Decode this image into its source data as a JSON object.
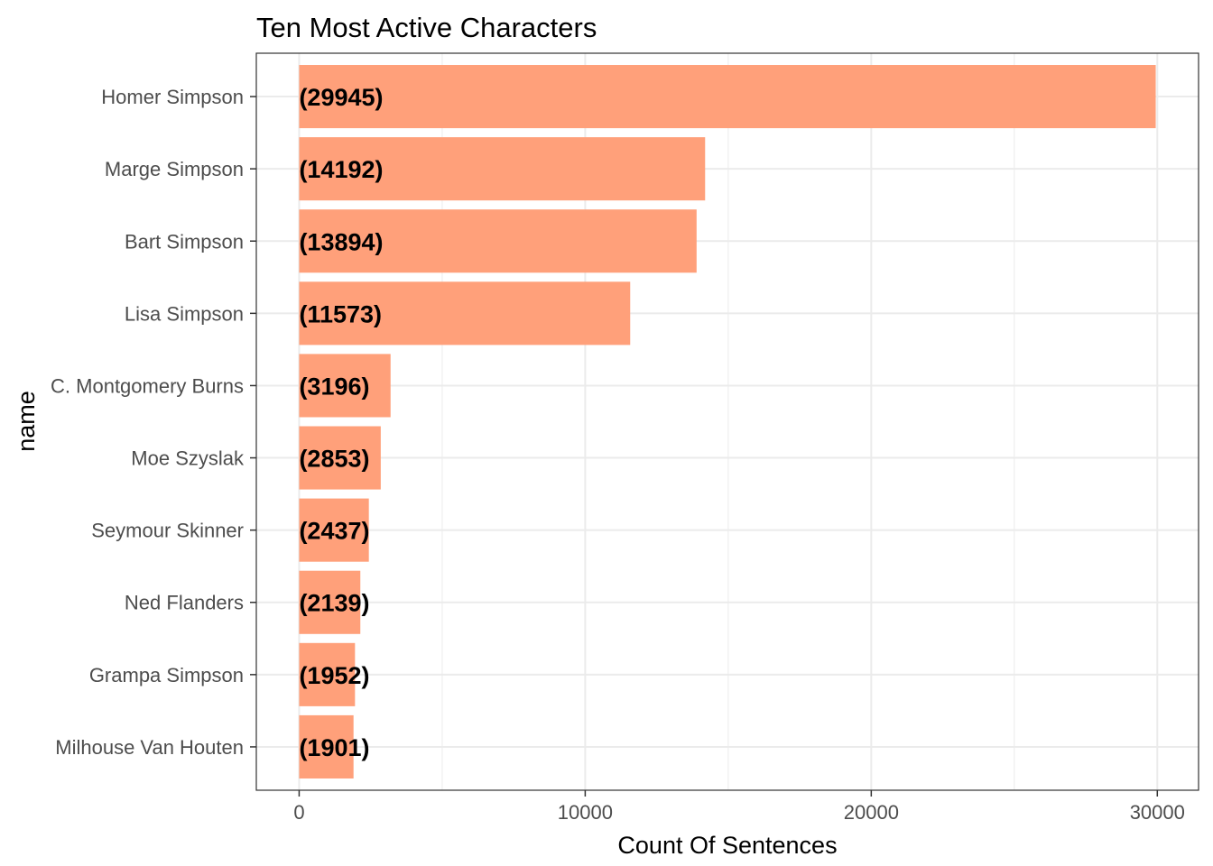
{
  "chart_data": {
    "type": "bar",
    "orientation": "horizontal",
    "title": "Ten Most Active Characters",
    "xlabel": "Count Of Sentences",
    "ylabel": "name",
    "categories": [
      "Homer Simpson",
      "Marge Simpson",
      "Bart Simpson",
      "Lisa Simpson",
      "C. Montgomery Burns",
      "Moe Szyslak",
      "Seymour Skinner",
      "Ned Flanders",
      "Grampa Simpson",
      "Milhouse Van Houten"
    ],
    "values": [
      29945,
      14192,
      13894,
      11573,
      3196,
      2853,
      2437,
      2139,
      1952,
      1901
    ],
    "data_labels": [
      "(29945)",
      "(14192)",
      "(13894)",
      "(11573)",
      "(3196)",
      "(2853)",
      "(2437)",
      "(2139)",
      "(1952)",
      "(1901)"
    ],
    "x_ticks": [
      0,
      10000,
      20000,
      30000
    ],
    "x_tick_labels": [
      "0",
      "10000",
      "20000",
      "30000"
    ],
    "xlim": [
      -1497,
      31442
    ],
    "grid": true,
    "legend": "none",
    "bar_color": "#ffa07a",
    "grid_color": "#ebebeb",
    "panel_border_color": "#333333"
  }
}
